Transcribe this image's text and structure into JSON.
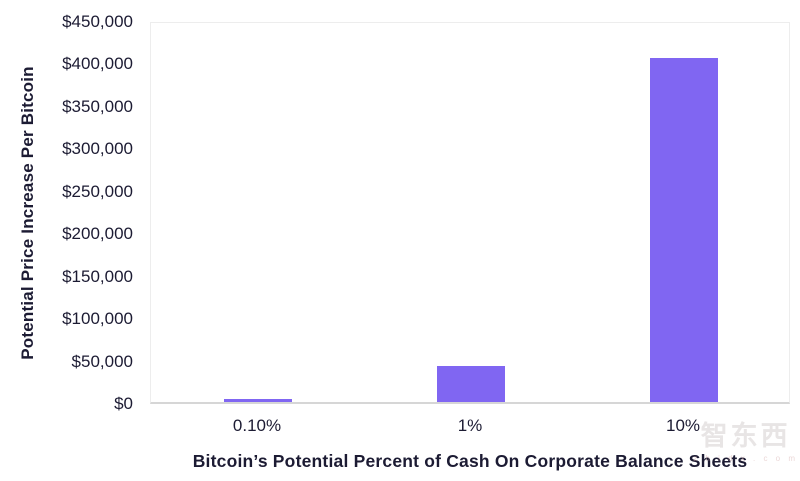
{
  "chart_data": {
    "type": "bar",
    "title": "",
    "categories": [
      "0.10%",
      "1%",
      "10%"
    ],
    "values": [
      4000,
      42000,
      405000
    ],
    "xlabel": "Bitcoin’s Potential Percent of Cash On Corporate Balance Sheets",
    "ylabel": "Potential Price Increase Per Bitcoin",
    "ylim": [
      0,
      450000
    ],
    "ytick_step": 50000,
    "ytick_labels": [
      "$450,000",
      "$400,000",
      "$350,000",
      "$300,000",
      "$250,000",
      "$200,000",
      "$150,000",
      "$100,000",
      "$50,000",
      "$0"
    ],
    "grid": false,
    "legend": false,
    "bar_color": "#8066f2",
    "text_color": "#1c1b33",
    "axis_line_color": "#d6d6d6",
    "plot_border_color": "#ededed"
  },
  "watermark": {
    "logo_text": "智东西",
    "domain_text": "z h i d x . c o m"
  }
}
